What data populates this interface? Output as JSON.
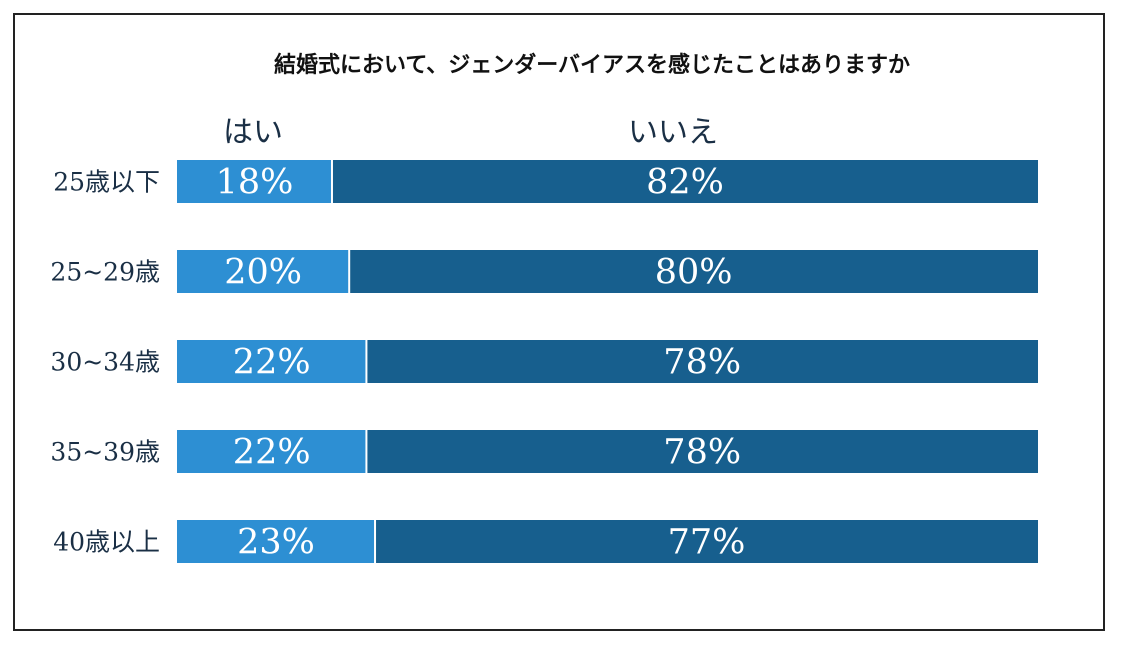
{
  "chart_data": {
    "type": "bar",
    "orientation": "horizontal",
    "stacked": true,
    "title": "結婚式において、ジェンダーバイアスを感じたことはありますか",
    "categories": [
      "25歳以下",
      "25~29歳",
      "30~34歳",
      "35~39歳",
      "40歳以上"
    ],
    "series": [
      {
        "name": "はい",
        "values": [
          18,
          20,
          22,
          22,
          23
        ],
        "color": "#2d8fd3"
      },
      {
        "name": "いいえ",
        "values": [
          82,
          80,
          78,
          78,
          77
        ],
        "color": "#175f8e"
      }
    ],
    "value_suffix": "%",
    "xlim": [
      0,
      100
    ],
    "grid": false,
    "legend": "top",
    "label_color": "#ffffff",
    "text_color": "#1a2f45"
  }
}
